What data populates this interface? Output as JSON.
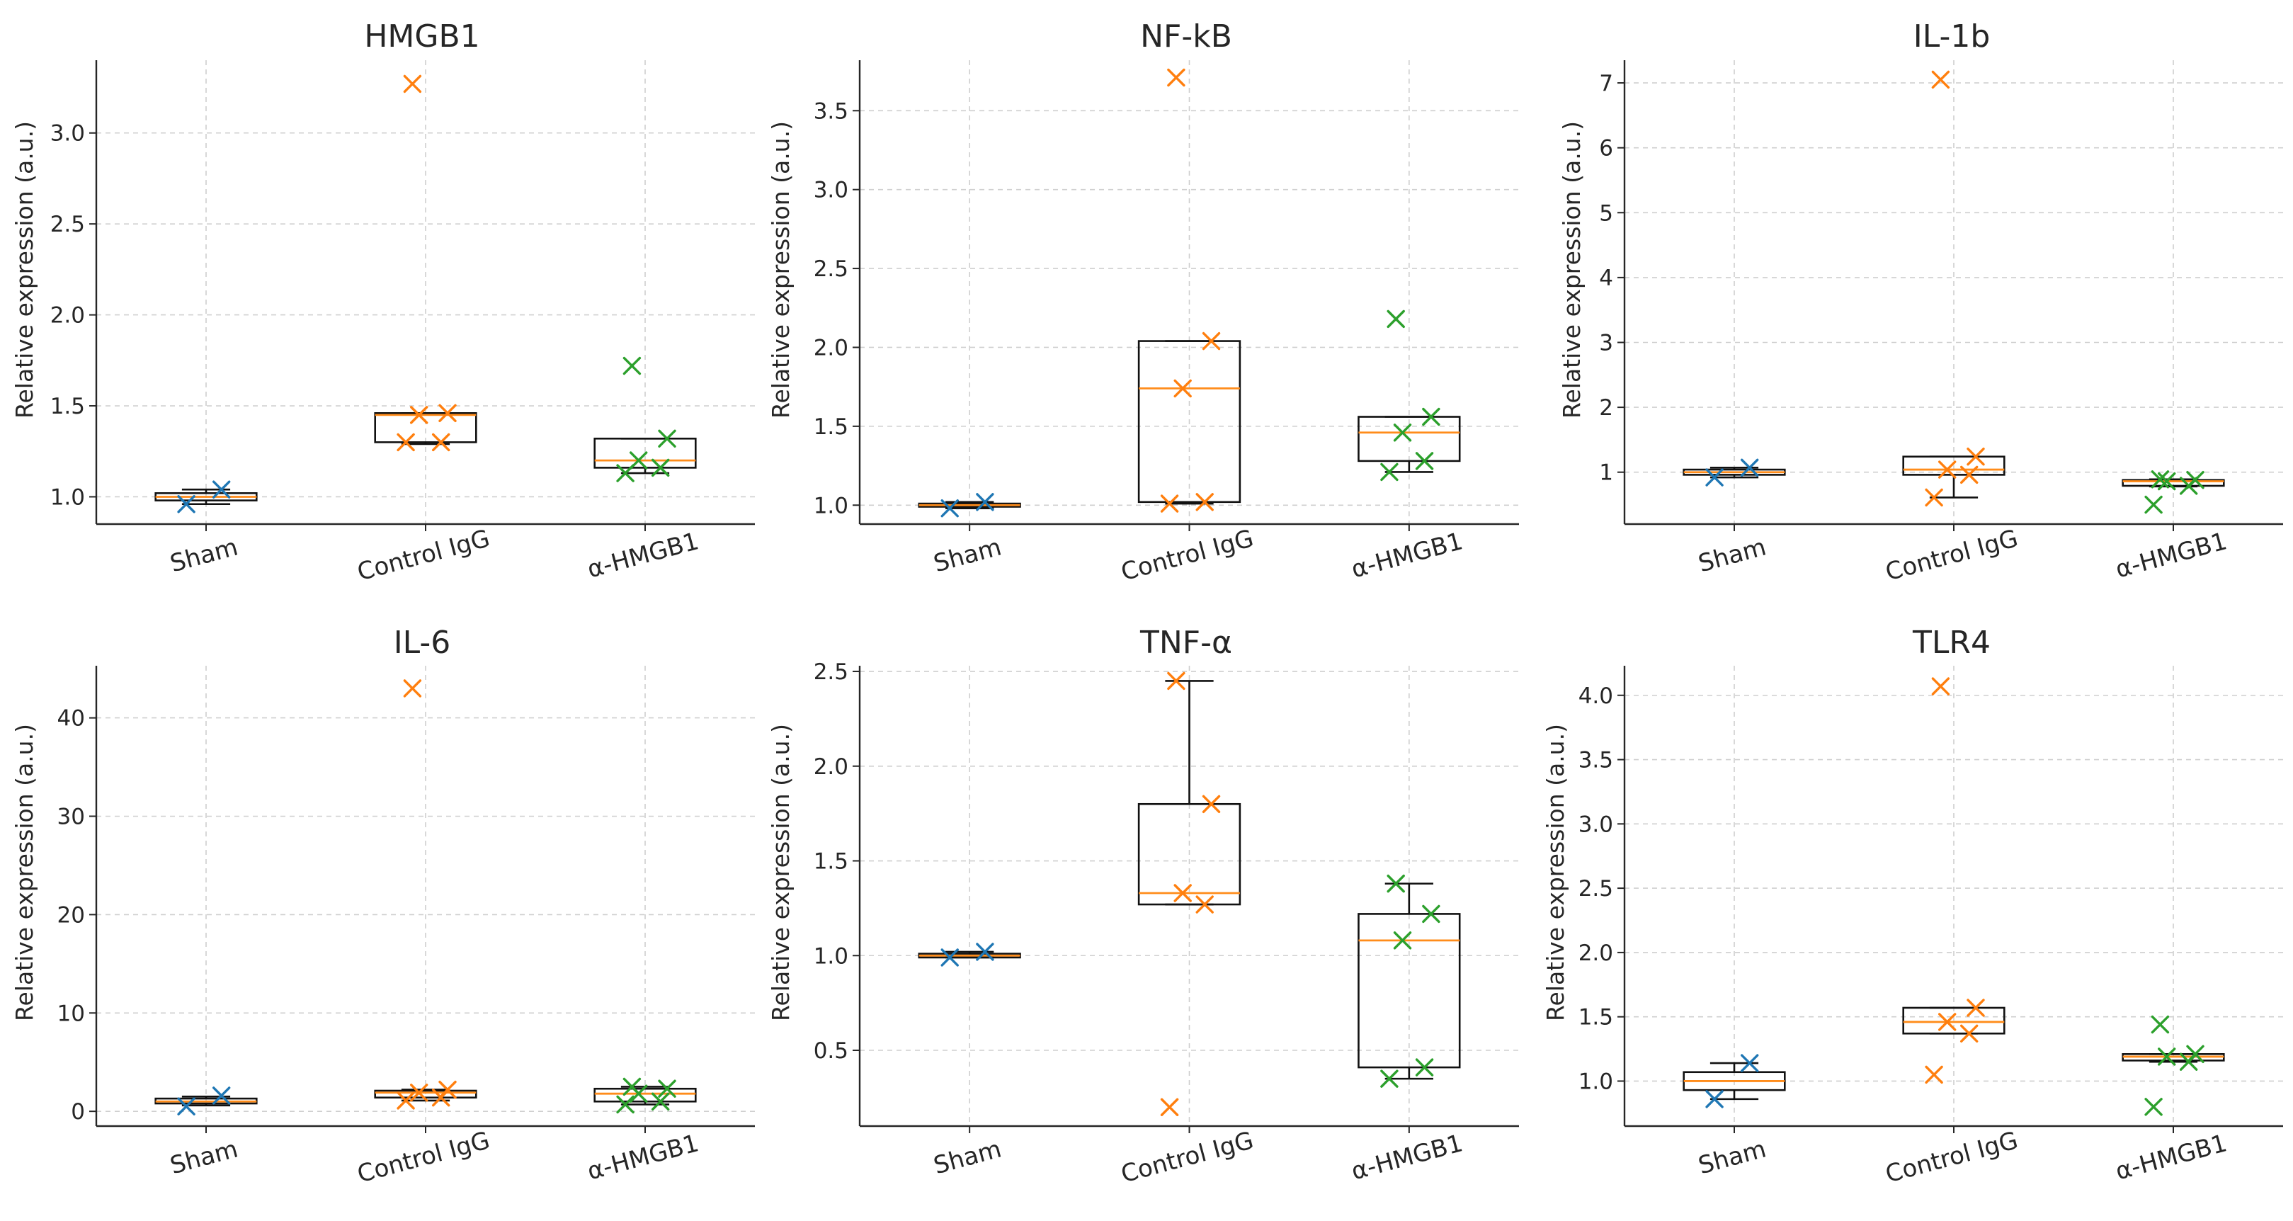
{
  "chart_data": [
    {
      "type": "box",
      "title": "HMGB1",
      "ylabel": "Relative expression (a.u.)",
      "categories": [
        "Sham",
        "Control IgG",
        "α-HMGB1"
      ],
      "ylim": [
        0.85,
        3.4
      ],
      "yticks": [
        "1.0",
        "1.5",
        "2.0",
        "2.5",
        "3.0"
      ],
      "groups": [
        {
          "name": "Sham",
          "color": "#1f77b4",
          "q1": 0.98,
          "median": 1.0,
          "q3": 1.02,
          "whisker_low": 0.96,
          "whisker_high": 1.04,
          "points": [
            0.96,
            1.04
          ]
        },
        {
          "name": "Control IgG",
          "color": "#ff7f0e",
          "q1": 1.3,
          "median": 1.45,
          "q3": 1.46,
          "whisker_low": 1.29,
          "whisker_high": 1.46,
          "points": [
            1.3,
            1.3,
            1.45,
            1.46,
            3.27
          ]
        },
        {
          "name": "α-HMGB1",
          "color": "#2ca02c",
          "q1": 1.16,
          "median": 1.2,
          "q3": 1.32,
          "whisker_low": 1.13,
          "whisker_high": 1.32,
          "points": [
            1.13,
            1.16,
            1.2,
            1.32,
            1.72
          ]
        }
      ]
    },
    {
      "type": "box",
      "title": "NF-kB",
      "ylabel": "Relative expression (a.u.)",
      "categories": [
        "Sham",
        "Control IgG",
        "α-HMGB1"
      ],
      "ylim": [
        0.88,
        3.82
      ],
      "yticks": [
        "1.0",
        "1.5",
        "2.0",
        "2.5",
        "3.0",
        "3.5"
      ],
      "groups": [
        {
          "name": "Sham",
          "color": "#1f77b4",
          "q1": 0.99,
          "median": 1.0,
          "q3": 1.01,
          "whisker_low": 0.98,
          "whisker_high": 1.02,
          "points": [
            0.98,
            1.02
          ]
        },
        {
          "name": "Control IgG",
          "color": "#ff7f0e",
          "q1": 1.02,
          "median": 1.74,
          "q3": 2.04,
          "whisker_low": 1.01,
          "whisker_high": 2.04,
          "points": [
            1.01,
            1.02,
            1.74,
            2.04,
            3.71
          ]
        },
        {
          "name": "α-HMGB1",
          "color": "#2ca02c",
          "q1": 1.28,
          "median": 1.46,
          "q3": 1.56,
          "whisker_low": 1.21,
          "whisker_high": 1.56,
          "points": [
            1.21,
            1.28,
            1.46,
            1.56,
            2.18
          ]
        }
      ]
    },
    {
      "type": "box",
      "title": "IL-1b",
      "ylabel": "Relative expression (a.u.)",
      "categories": [
        "Sham",
        "Control IgG",
        "α-HMGB1"
      ],
      "ylim": [
        0.2,
        7.35
      ],
      "yticks": [
        "1",
        "2",
        "3",
        "4",
        "5",
        "6",
        "7"
      ],
      "groups": [
        {
          "name": "Sham",
          "color": "#1f77b4",
          "q1": 0.96,
          "median": 1.0,
          "q3": 1.04,
          "whisker_low": 0.92,
          "whisker_high": 1.07,
          "points": [
            0.92,
            1.07
          ]
        },
        {
          "name": "Control IgG",
          "color": "#ff7f0e",
          "q1": 0.96,
          "median": 1.04,
          "q3": 1.24,
          "whisker_low": 0.61,
          "whisker_high": 1.24,
          "points": [
            0.61,
            0.96,
            1.04,
            1.24,
            7.05
          ]
        },
        {
          "name": "α-HMGB1",
          "color": "#2ca02c",
          "q1": 0.79,
          "median": 0.86,
          "q3": 0.88,
          "whisker_low": 0.78,
          "whisker_high": 0.89,
          "points": [
            0.5,
            0.79,
            0.86,
            0.88,
            0.89
          ]
        }
      ]
    },
    {
      "type": "box",
      "title": "IL-6",
      "ylabel": "Relative expression (a.u.)",
      "categories": [
        "Sham",
        "Control IgG",
        "α-HMGB1"
      ],
      "ylim": [
        -1.5,
        45.3
      ],
      "yticks": [
        "0",
        "10",
        "20",
        "30",
        "40"
      ],
      "groups": [
        {
          "name": "Sham",
          "color": "#1f77b4",
          "q1": 0.8,
          "median": 1.0,
          "q3": 1.3,
          "whisker_low": 0.6,
          "whisker_high": 1.5,
          "points": [
            0.5,
            1.6
          ]
        },
        {
          "name": "Control IgG",
          "color": "#ff7f0e",
          "q1": 1.4,
          "median": 1.9,
          "q3": 2.1,
          "whisker_low": 1.1,
          "whisker_high": 2.2,
          "points": [
            1.1,
            1.4,
            1.9,
            2.2,
            43.0
          ]
        },
        {
          "name": "α-HMGB1",
          "color": "#2ca02c",
          "q1": 1.0,
          "median": 1.8,
          "q3": 2.3,
          "whisker_low": 0.7,
          "whisker_high": 2.5,
          "points": [
            0.7,
            1.0,
            1.8,
            2.3,
            2.5
          ]
        }
      ]
    },
    {
      "type": "box",
      "title": "TNF-α",
      "ylabel": "Relative expression (a.u.)",
      "categories": [
        "Sham",
        "Control IgG",
        "α-HMGB1"
      ],
      "ylim": [
        0.1,
        2.53
      ],
      "yticks": [
        "0.5",
        "1.0",
        "1.5",
        "2.0",
        "2.5"
      ],
      "groups": [
        {
          "name": "Sham",
          "color": "#1f77b4",
          "q1": 0.99,
          "median": 1.0,
          "q3": 1.01,
          "whisker_low": 0.99,
          "whisker_high": 1.02,
          "points": [
            0.99,
            1.02
          ]
        },
        {
          "name": "Control IgG",
          "color": "#ff7f0e",
          "q1": 1.27,
          "median": 1.33,
          "q3": 1.8,
          "whisker_low": 1.27,
          "whisker_high": 2.45,
          "points": [
            0.2,
            1.27,
            1.33,
            1.8,
            2.45
          ]
        },
        {
          "name": "α-HMGB1",
          "color": "#2ca02c",
          "q1": 0.41,
          "median": 1.08,
          "q3": 1.22,
          "whisker_low": 0.35,
          "whisker_high": 1.38,
          "points": [
            0.35,
            0.41,
            1.08,
            1.22,
            1.38
          ]
        }
      ]
    },
    {
      "type": "box",
      "title": "TLR4",
      "ylabel": "Relative expression (a.u.)",
      "categories": [
        "Sham",
        "Control IgG",
        "α-HMGB1"
      ],
      "ylim": [
        0.65,
        4.23
      ],
      "yticks": [
        "1.0",
        "1.5",
        "2.0",
        "2.5",
        "3.0",
        "3.5",
        "4.0"
      ],
      "groups": [
        {
          "name": "Sham",
          "color": "#1f77b4",
          "q1": 0.93,
          "median": 1.0,
          "q3": 1.07,
          "whisker_low": 0.86,
          "whisker_high": 1.14,
          "points": [
            0.86,
            1.14
          ]
        },
        {
          "name": "Control IgG",
          "color": "#ff7f0e",
          "q1": 1.37,
          "median": 1.46,
          "q3": 1.57,
          "whisker_low": 1.37,
          "whisker_high": 1.57,
          "points": [
            1.05,
            1.37,
            1.46,
            1.57,
            4.07
          ]
        },
        {
          "name": "α-HMGB1",
          "color": "#2ca02c",
          "q1": 1.16,
          "median": 1.19,
          "q3": 1.21,
          "whisker_low": 1.15,
          "whisker_high": 1.21,
          "points": [
            0.8,
            1.15,
            1.19,
            1.21,
            1.44
          ]
        }
      ]
    }
  ]
}
